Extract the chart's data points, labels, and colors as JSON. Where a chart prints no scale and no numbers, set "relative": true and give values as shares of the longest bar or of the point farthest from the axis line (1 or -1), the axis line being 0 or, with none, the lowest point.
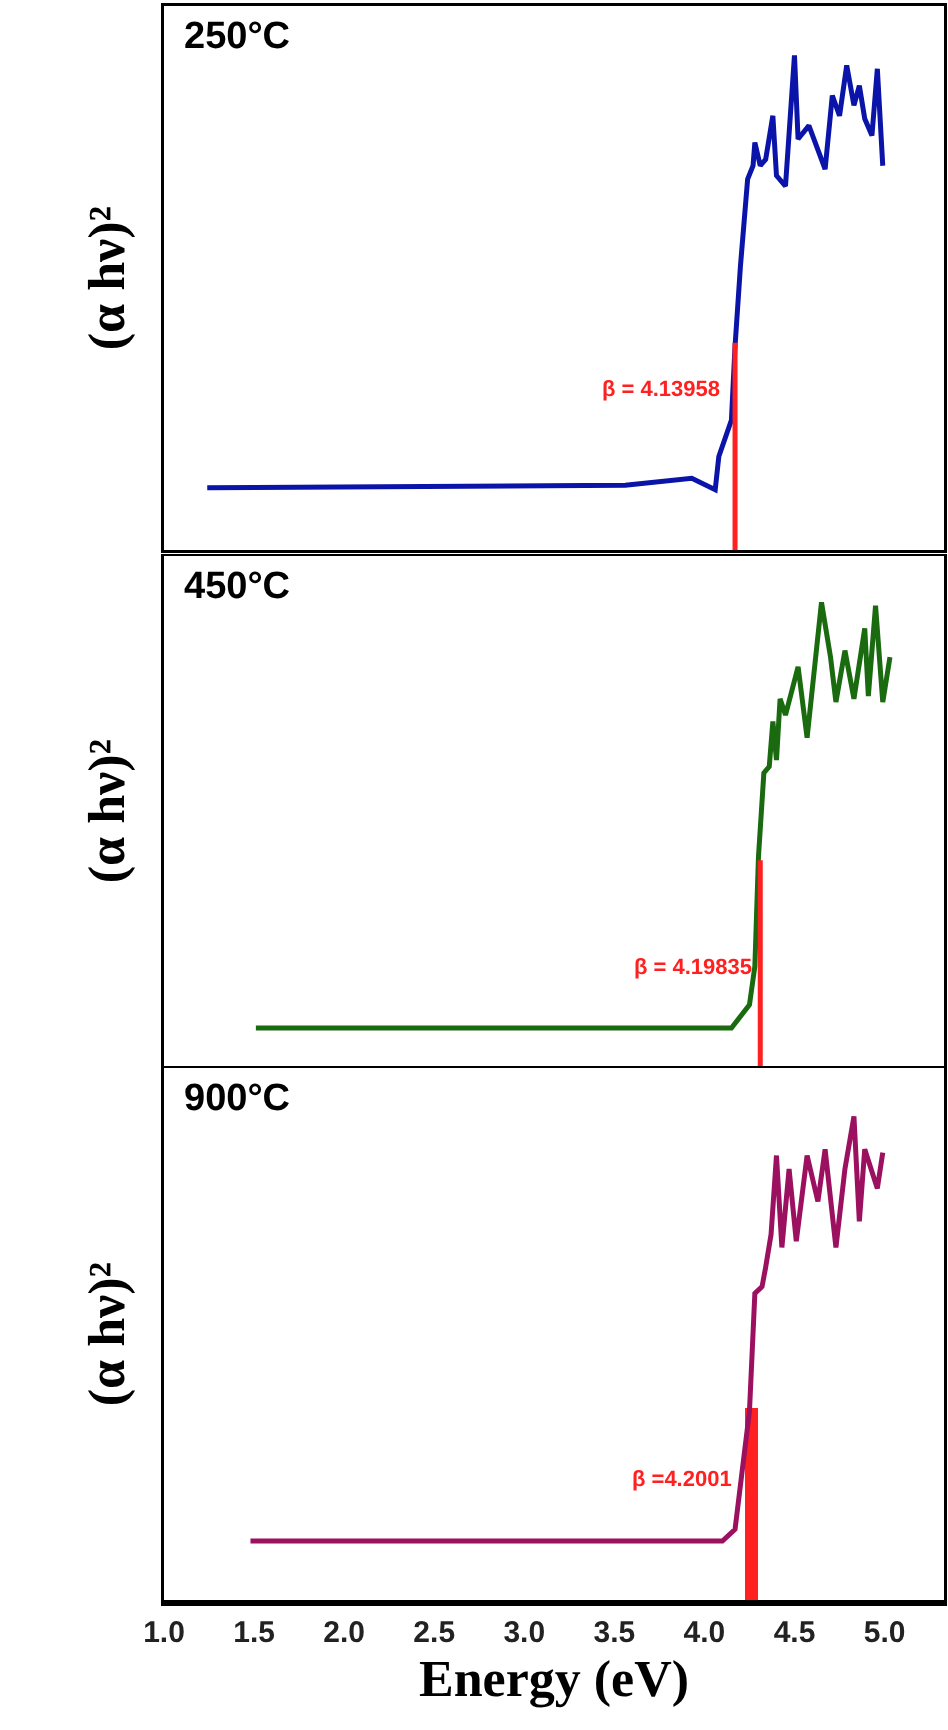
{
  "chart_data": [
    {
      "type": "line",
      "title": "250°C",
      "ylabel": "(α hν)²",
      "relative": true,
      "tick_labels": false,
      "xlim": [
        1.0,
        5.33
      ],
      "series": [
        {
          "color": "#0a14a8",
          "x": [
            1.24,
            3.56,
            3.93,
            4.06,
            4.08,
            4.15,
            4.17,
            4.2,
            4.24,
            4.27,
            4.28,
            4.31,
            4.34,
            4.38,
            4.4,
            4.45,
            4.5,
            4.52,
            4.58,
            4.67,
            4.71,
            4.75,
            4.79,
            4.83,
            4.86,
            4.89,
            4.93,
            4.96,
            4.99
          ],
          "values": [
            0.126,
            0.131,
            0.145,
            0.122,
            0.189,
            0.263,
            0.412,
            0.574,
            0.75,
            0.777,
            0.824,
            0.777,
            0.79,
            0.878,
            0.757,
            0.736,
            1.0,
            0.831,
            0.858,
            0.77,
            0.919,
            0.878,
            0.98,
            0.899,
            0.939,
            0.872,
            0.838,
            0.973,
            0.777
          ]
        },
        {
          "type": "line",
          "color": "#ff2020",
          "x": [
            4.17,
            4.17
          ],
          "values": [
            0,
            0.419
          ]
        }
      ],
      "annotations": [
        {
          "text": "β = 4.13958",
          "x": 4.11,
          "y": 0.324
        }
      ]
    },
    {
      "type": "line",
      "title": "450°C",
      "ylabel": "(α hν)²",
      "relative": true,
      "tick_labels": false,
      "xlim": [
        1.0,
        5.33
      ],
      "series": [
        {
          "color": "#1a6a10",
          "x": [
            1.51,
            4.15,
            4.25,
            4.28,
            4.3,
            4.33,
            4.36,
            4.38,
            4.4,
            4.42,
            4.45,
            4.52,
            4.57,
            4.65,
            4.7,
            4.73,
            4.78,
            4.83,
            4.89,
            4.91,
            4.95,
            4.99,
            5.03
          ],
          "values": [
            0.082,
            0.082,
            0.132,
            0.215,
            0.451,
            0.632,
            0.646,
            0.743,
            0.66,
            0.792,
            0.757,
            0.861,
            0.708,
            1.0,
            0.882,
            0.785,
            0.896,
            0.792,
            0.944,
            0.798,
            0.993,
            0.785,
            0.882
          ]
        },
        {
          "type": "line",
          "color": "#ff2020",
          "x": [
            4.31,
            4.31
          ],
          "values": [
            0,
            0.444
          ]
        }
      ],
      "annotations": [
        {
          "text": "β = 4.19835",
          "x": 4.29,
          "y": 0.212
        }
      ]
    },
    {
      "type": "line",
      "title": "900°C",
      "ylabel": "(α hν)²",
      "xlabel": "Energy (eV)",
      "relative": true,
      "tick_labels": "x",
      "xlim": [
        1.0,
        5.33
      ],
      "xticks": [
        {
          "value": 1.0,
          "label": "1.0"
        },
        {
          "value": 1.5,
          "label": "1.5"
        },
        {
          "value": 2.0,
          "label": "2.0"
        },
        {
          "value": 2.5,
          "label": "2.5"
        },
        {
          "value": 3.0,
          "label": "3.0"
        },
        {
          "value": 3.5,
          "label": "3.5"
        },
        {
          "value": 4.0,
          "label": "4.0"
        },
        {
          "value": 4.5,
          "label": "4.5"
        },
        {
          "value": 5.0,
          "label": "5.0"
        }
      ],
      "series": [
        {
          "color": "#9c1060",
          "x": [
            1.48,
            4.1,
            4.17,
            4.25,
            4.28,
            4.32,
            4.34,
            4.37,
            4.4,
            4.43,
            4.47,
            4.51,
            4.57,
            4.63,
            4.67,
            4.73,
            4.78,
            4.83,
            4.86,
            4.89,
            4.96,
            4.99
          ],
          "values": [
            0.122,
            0.122,
            0.146,
            0.39,
            0.634,
            0.648,
            0.688,
            0.756,
            0.919,
            0.729,
            0.891,
            0.742,
            0.919,
            0.824,
            0.932,
            0.729,
            0.891,
            1.0,
            0.783,
            0.932,
            0.851,
            0.925
          ]
        },
        {
          "type": "bar",
          "color": "#ff2020",
          "x": [
            4.26
          ],
          "values": [
            0.397
          ]
        }
      ],
      "annotations": [
        {
          "text": "β =4.2001",
          "x": 4.18,
          "y": 0.248
        }
      ]
    }
  ]
}
